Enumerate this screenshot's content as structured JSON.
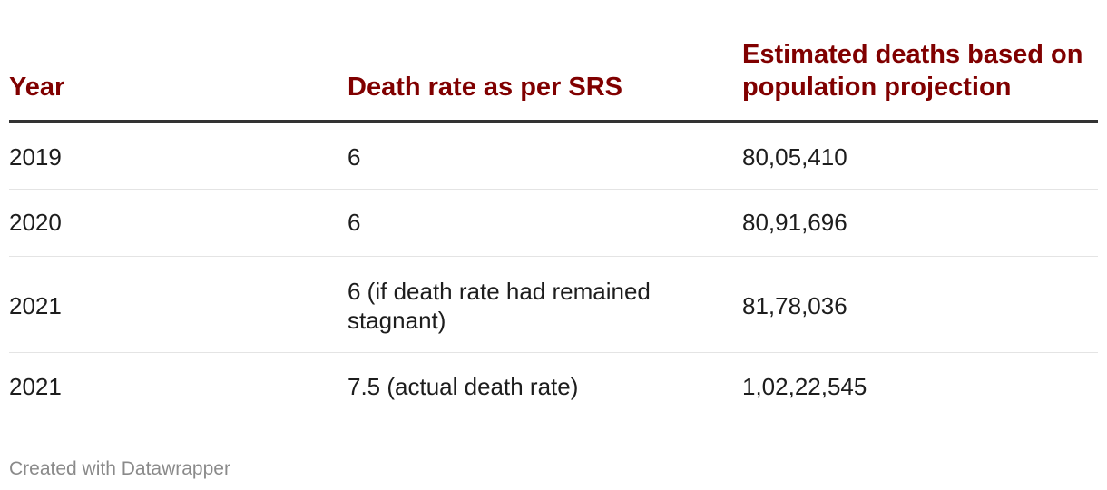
{
  "chart_data": {
    "type": "table",
    "columns": [
      "Year",
      "Death rate as per SRS",
      "Estimated deaths based on population projection"
    ],
    "rows": [
      [
        "2019",
        "6",
        "80,05,410"
      ],
      [
        "2020",
        "6",
        "80,91,696"
      ],
      [
        "2021",
        "6 (if death rate had remained stagnant)",
        "81,78,036"
      ],
      [
        "2021",
        "7.5 (actual death rate)",
        "1,02,22,545"
      ]
    ],
    "colors": {
      "header_text": "#800000",
      "header_rule": "#333333",
      "row_rule": "#e4e4e4",
      "credit_text": "#8a8a8a"
    }
  },
  "footer": {
    "credit": "Created with Datawrapper"
  }
}
